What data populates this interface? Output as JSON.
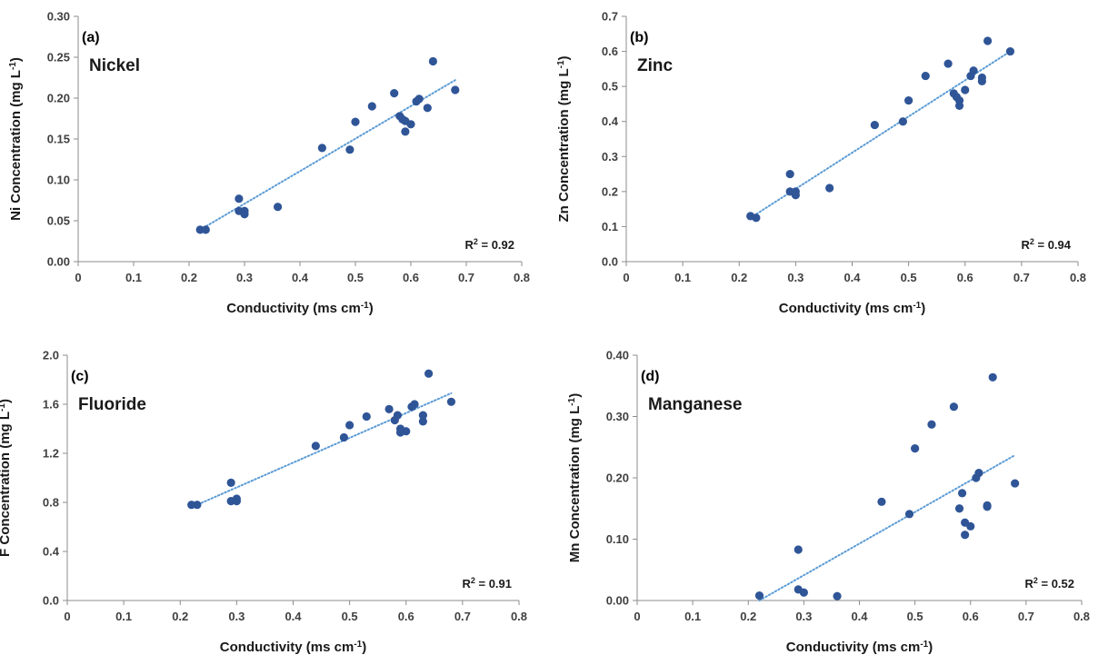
{
  "chart_data": [
    {
      "type": "scatter",
      "panel": "(a)",
      "annotation": "Nickel",
      "xlabel": "Conductivity (ms cm",
      "xlabel_sup": "-1",
      "xlabel_close": ")",
      "ylabel": "Ni Concentration (mg L",
      "ylabel_sup": "-1",
      "ylabel_close": ")",
      "xlim": [
        0,
        0.8
      ],
      "ylim": [
        0,
        0.3
      ],
      "x_ticks": [
        "0",
        "0.1",
        "0.2",
        "0.3",
        "0.4",
        "0.5",
        "0.6",
        "0.7",
        "0.8"
      ],
      "y_ticks": [
        "0.00",
        "0.05",
        "0.10",
        "0.15",
        "0.20",
        "0.25",
        "0.30"
      ],
      "x_tick_values": [
        0,
        0.1,
        0.2,
        0.3,
        0.4,
        0.5,
        0.6,
        0.7,
        0.8
      ],
      "y_tick_values": [
        0,
        0.05,
        0.1,
        0.15,
        0.2,
        0.25,
        0.3
      ],
      "r2_prefix": "R",
      "r2_sup": "2",
      "r2_value": " = 0.92",
      "trendline": {
        "x": [
          0.22,
          0.68
        ],
        "y": [
          0.039,
          0.222
        ]
      },
      "marker_color": "#2f5597",
      "trend_color": "#5b9bd5",
      "points": [
        [
          0.22,
          0.039
        ],
        [
          0.23,
          0.039
        ],
        [
          0.29,
          0.062
        ],
        [
          0.29,
          0.077
        ],
        [
          0.3,
          0.062
        ],
        [
          0.3,
          0.058
        ],
        [
          0.36,
          0.067
        ],
        [
          0.44,
          0.139
        ],
        [
          0.49,
          0.137
        ],
        [
          0.5,
          0.171
        ],
        [
          0.53,
          0.19
        ],
        [
          0.57,
          0.206
        ],
        [
          0.58,
          0.178
        ],
        [
          0.585,
          0.174
        ],
        [
          0.59,
          0.159
        ],
        [
          0.59,
          0.172
        ],
        [
          0.6,
          0.168
        ],
        [
          0.61,
          0.196
        ],
        [
          0.615,
          0.199
        ],
        [
          0.63,
          0.188
        ],
        [
          0.64,
          0.245
        ],
        [
          0.68,
          0.21
        ]
      ]
    },
    {
      "type": "scatter",
      "panel": "(b)",
      "annotation": "Zinc",
      "xlabel": "Conductivity (ms cm",
      "xlabel_sup": "-1",
      "xlabel_close": ")",
      "ylabel": "Zn Concentration (mg L",
      "ylabel_sup": "-1",
      "ylabel_close": ")",
      "xlim": [
        0,
        0.8
      ],
      "ylim": [
        0,
        0.7
      ],
      "x_ticks": [
        "0",
        "0.1",
        "0.2",
        "0.3",
        "0.4",
        "0.5",
        "0.6",
        "0.7",
        "0.8"
      ],
      "y_ticks": [
        "0.0",
        "0.1",
        "0.2",
        "0.3",
        "0.4",
        "0.5",
        "0.6",
        "0.7"
      ],
      "x_tick_values": [
        0,
        0.1,
        0.2,
        0.3,
        0.4,
        0.5,
        0.6,
        0.7,
        0.8
      ],
      "y_tick_values": [
        0,
        0.1,
        0.2,
        0.3,
        0.4,
        0.5,
        0.6,
        0.7
      ],
      "r2_prefix": "R",
      "r2_sup": "2",
      "r2_value": " = 0.94",
      "trendline": {
        "x": [
          0.22,
          0.68
        ],
        "y": [
          0.125,
          0.6
        ]
      },
      "marker_color": "#2f5597",
      "trend_color": "#5b9bd5",
      "points": [
        [
          0.22,
          0.13
        ],
        [
          0.23,
          0.125
        ],
        [
          0.29,
          0.25
        ],
        [
          0.29,
          0.2
        ],
        [
          0.3,
          0.19
        ],
        [
          0.3,
          0.2
        ],
        [
          0.36,
          0.21
        ],
        [
          0.44,
          0.39
        ],
        [
          0.49,
          0.4
        ],
        [
          0.5,
          0.46
        ],
        [
          0.53,
          0.53
        ],
        [
          0.57,
          0.565
        ],
        [
          0.58,
          0.48
        ],
        [
          0.585,
          0.47
        ],
        [
          0.59,
          0.445
        ],
        [
          0.59,
          0.46
        ],
        [
          0.6,
          0.49
        ],
        [
          0.61,
          0.53
        ],
        [
          0.615,
          0.545
        ],
        [
          0.63,
          0.515
        ],
        [
          0.63,
          0.525
        ],
        [
          0.64,
          0.63
        ],
        [
          0.68,
          0.6
        ]
      ]
    },
    {
      "type": "scatter",
      "panel": "(c)",
      "annotation": "Fluoride",
      "xlabel": "Conductivity (ms cm",
      "xlabel_sup": "-1",
      "xlabel_close": ")",
      "ylabel": "F Concentration (mg L",
      "ylabel_sup": "-1",
      "ylabel_close": ")",
      "xlim": [
        0,
        0.8
      ],
      "ylim": [
        0,
        2.0
      ],
      "x_ticks": [
        "0",
        "0.1",
        "0.2",
        "0.3",
        "0.4",
        "0.5",
        "0.6",
        "0.7",
        "0.8"
      ],
      "y_ticks": [
        "0.0",
        "0.4",
        "0.8",
        "1.2",
        "1.6",
        "2.0"
      ],
      "x_tick_values": [
        0,
        0.1,
        0.2,
        0.3,
        0.4,
        0.5,
        0.6,
        0.7,
        0.8
      ],
      "y_tick_values": [
        0,
        0.4,
        0.8,
        1.2,
        1.6,
        2.0
      ],
      "r2_prefix": "R",
      "r2_sup": "2",
      "r2_value": " = 0.91",
      "trendline": {
        "x": [
          0.22,
          0.68
        ],
        "y": [
          0.76,
          1.69
        ]
      },
      "marker_color": "#2f5597",
      "trend_color": "#5b9bd5",
      "points": [
        [
          0.22,
          0.78
        ],
        [
          0.23,
          0.78
        ],
        [
          0.29,
          0.96
        ],
        [
          0.29,
          0.81
        ],
        [
          0.3,
          0.83
        ],
        [
          0.3,
          0.81
        ],
        [
          0.44,
          1.26
        ],
        [
          0.49,
          1.33
        ],
        [
          0.5,
          1.43
        ],
        [
          0.53,
          1.5
        ],
        [
          0.57,
          1.56
        ],
        [
          0.58,
          1.47
        ],
        [
          0.585,
          1.51
        ],
        [
          0.59,
          1.37
        ],
        [
          0.59,
          1.4
        ],
        [
          0.6,
          1.38
        ],
        [
          0.61,
          1.58
        ],
        [
          0.615,
          1.6
        ],
        [
          0.63,
          1.46
        ],
        [
          0.63,
          1.51
        ],
        [
          0.64,
          1.85
        ],
        [
          0.68,
          1.62
        ]
      ]
    },
    {
      "type": "scatter",
      "panel": "(d)",
      "annotation": "Manganese",
      "xlabel": "Conductivity (ms cm",
      "xlabel_sup": "-1",
      "xlabel_close": ")",
      "ylabel": "Mn Concentration (mg L",
      "ylabel_sup": "-1",
      "ylabel_close": ")",
      "xlim": [
        0,
        0.8
      ],
      "ylim": [
        0,
        0.4
      ],
      "x_ticks": [
        "0",
        "0.1",
        "0.2",
        "0.3",
        "0.4",
        "0.5",
        "0.6",
        "0.7",
        "0.8"
      ],
      "y_ticks": [
        "0.00",
        "0.10",
        "0.20",
        "0.30",
        "0.40"
      ],
      "x_tick_values": [
        0,
        0.1,
        0.2,
        0.3,
        0.4,
        0.5,
        0.6,
        0.7,
        0.8
      ],
      "y_tick_values": [
        0,
        0.1,
        0.2,
        0.3,
        0.4
      ],
      "r2_prefix": "R",
      "r2_sup": "2",
      "r2_value": " = 0.52",
      "trendline": {
        "x": [
          0.22,
          0.68
        ],
        "y": [
          0.0,
          0.237
        ]
      },
      "marker_color": "#2f5597",
      "trend_color": "#5b9bd5",
      "points": [
        [
          0.22,
          0.008
        ],
        [
          0.29,
          0.083
        ],
        [
          0.29,
          0.018
        ],
        [
          0.3,
          0.013
        ],
        [
          0.36,
          0.007
        ],
        [
          0.44,
          0.161
        ],
        [
          0.49,
          0.141
        ],
        [
          0.5,
          0.248
        ],
        [
          0.53,
          0.287
        ],
        [
          0.57,
          0.316
        ],
        [
          0.58,
          0.15
        ],
        [
          0.585,
          0.175
        ],
        [
          0.59,
          0.107
        ],
        [
          0.59,
          0.127
        ],
        [
          0.6,
          0.121
        ],
        [
          0.61,
          0.2
        ],
        [
          0.615,
          0.208
        ],
        [
          0.63,
          0.155
        ],
        [
          0.63,
          0.153
        ],
        [
          0.64,
          0.364
        ],
        [
          0.68,
          0.191
        ]
      ]
    }
  ]
}
